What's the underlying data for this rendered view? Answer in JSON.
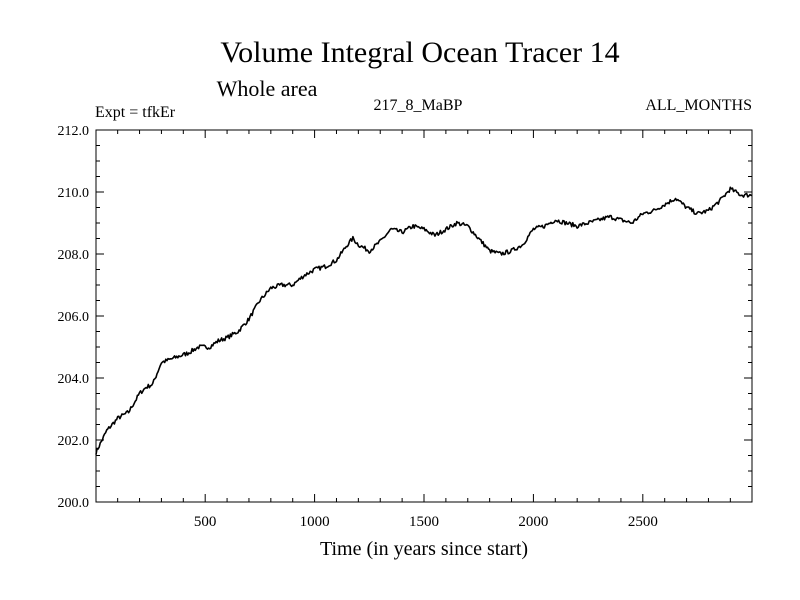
{
  "chart_data": {
    "type": "line",
    "title": "Volume Integral Ocean Tracer 14",
    "subtitle": "Whole area",
    "annotations": {
      "left": "Expt = tfkEr",
      "center": "217_8_MaBP",
      "right": "ALL_MONTHS"
    },
    "xlabel": "Time (in years since start)",
    "ylabel": "",
    "xlim": [
      1,
      2999
    ],
    "ylim": [
      200.0,
      212.0
    ],
    "x_ticks": [
      500,
      1000,
      1500,
      2000,
      2500
    ],
    "y_ticks": [
      "200.0",
      "202.0",
      "204.0",
      "206.0",
      "208.0",
      "210.0",
      "212.0"
    ],
    "grid": false,
    "legend": "none",
    "line_color": "#000000",
    "series": [
      {
        "x": [
          1,
          50,
          100,
          150,
          200,
          230,
          260,
          300,
          340,
          380,
          420,
          470,
          520,
          560,
          600,
          650,
          700,
          750,
          800,
          850,
          900,
          950,
          1000,
          1050,
          1100,
          1150,
          1175,
          1200,
          1250,
          1300,
          1350,
          1400,
          1450,
          1500,
          1550,
          1600,
          1650,
          1700,
          1750,
          1800,
          1850,
          1900,
          1950,
          2000,
          2050,
          2100,
          2150,
          2200,
          2250,
          2300,
          2350,
          2400,
          2450,
          2500,
          2550,
          2600,
          2650,
          2700,
          2750,
          2800,
          2850,
          2900,
          2950,
          3000
        ],
        "values": [
          201.6,
          202.3,
          202.7,
          202.9,
          203.5,
          203.7,
          203.8,
          204.5,
          204.6,
          204.7,
          204.8,
          205.0,
          205.0,
          205.2,
          205.3,
          205.5,
          205.9,
          206.5,
          206.9,
          207.0,
          207.0,
          207.3,
          207.5,
          207.6,
          207.8,
          208.3,
          208.5,
          208.3,
          208.1,
          208.4,
          208.8,
          208.7,
          208.9,
          208.8,
          208.6,
          208.8,
          209.0,
          208.9,
          208.5,
          208.1,
          208.0,
          208.1,
          208.3,
          208.8,
          208.9,
          209.1,
          209.0,
          208.9,
          209.0,
          209.1,
          209.2,
          209.1,
          209.0,
          209.3,
          209.4,
          209.6,
          209.8,
          209.5,
          209.3,
          209.4,
          209.7,
          210.1,
          209.9,
          209.9
        ]
      }
    ]
  }
}
